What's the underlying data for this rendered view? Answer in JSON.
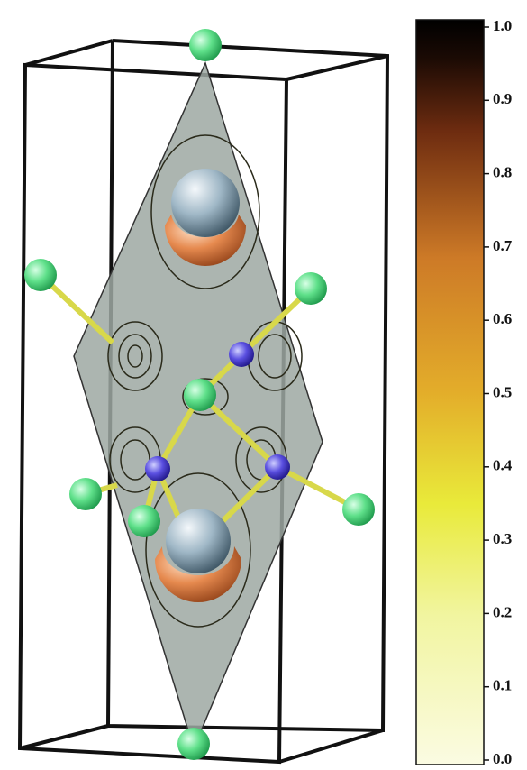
{
  "colorbar": {
    "lim": [
      0,
      1
    ],
    "ticks": [
      {
        "value": 0,
        "label": "0.0"
      },
      {
        "value": 0.1,
        "label": "0.1"
      },
      {
        "value": 0.2,
        "label": "0.2"
      },
      {
        "value": 0.3,
        "label": "0.3"
      },
      {
        "value": 0.4,
        "label": "0.4"
      },
      {
        "value": 0.5,
        "label": "0.5"
      },
      {
        "value": 0.6,
        "label": "0.6"
      },
      {
        "value": 0.7,
        "label": "0.7"
      },
      {
        "value": 0.8,
        "label": "0.8"
      },
      {
        "value": 0.9,
        "label": "0.9"
      },
      {
        "value": 1,
        "label": "1.0"
      }
    ]
  }
}
